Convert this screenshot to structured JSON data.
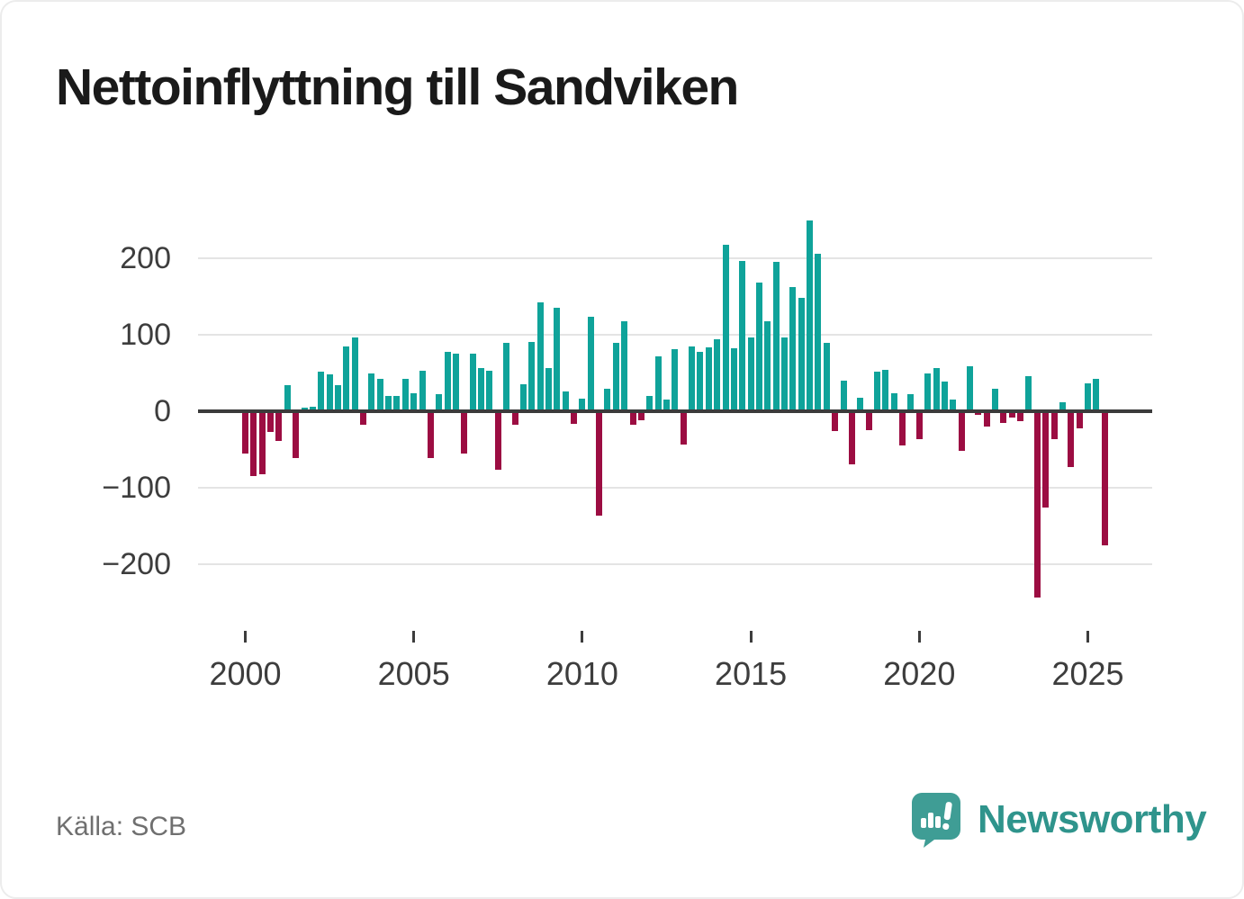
{
  "title": "Nettoinflyttning till Sandviken",
  "source": "Källa: SCB",
  "brand": {
    "name": "Newsworthy",
    "icon": "newsworthy-logo-icon",
    "text_color": "#2f948c",
    "icon_color": "#3f9d95"
  },
  "colors": {
    "positive": "#0fa39a",
    "negative": "#9c0d42",
    "grid": "#e4e4e4",
    "axis": "#3b3b3b",
    "tick_text": "#3d3d3d",
    "muted_text": "#6f6f6f"
  },
  "chart_data": {
    "type": "bar",
    "title": "Nettoinflyttning till Sandviken",
    "frequency": "quarterly",
    "start": "2000Q1",
    "end": "2025Q3",
    "xlabel": "",
    "ylabel": "",
    "x_ticks": [
      2000,
      2005,
      2010,
      2015,
      2020,
      2025
    ],
    "y_ticks": [
      200,
      100,
      0,
      -100,
      -200
    ],
    "ylim": [
      -260,
      265
    ],
    "grid": true,
    "legend": "none",
    "series": [
      {
        "name": "Nettoinflyttning",
        "values": [
          -55,
          -85,
          -82,
          -27,
          -39,
          34,
          -61,
          5,
          6,
          52,
          48,
          34,
          85,
          97,
          -18,
          50,
          42,
          20,
          20,
          42,
          24,
          53,
          -61,
          22,
          78,
          75,
          -55,
          75,
          57,
          53,
          -77,
          89,
          -18,
          35,
          91,
          142,
          57,
          135,
          26,
          -17,
          16,
          124,
          -137,
          30,
          90,
          118,
          -18,
          -12,
          20,
          72,
          15,
          81,
          -44,
          85,
          78,
          83,
          94,
          218,
          82,
          196,
          96,
          168,
          118,
          195,
          97,
          162,
          148,
          250,
          206,
          89,
          -26,
          40,
          -69,
          18,
          -25,
          52,
          54,
          24,
          -45,
          22,
          -36,
          50,
          57,
          39,
          15,
          -52,
          59,
          -5,
          -20,
          29,
          -15,
          -8,
          -13,
          46,
          -244,
          -126,
          -37,
          12,
          -73,
          -22,
          37,
          42,
          -175
        ]
      }
    ]
  }
}
